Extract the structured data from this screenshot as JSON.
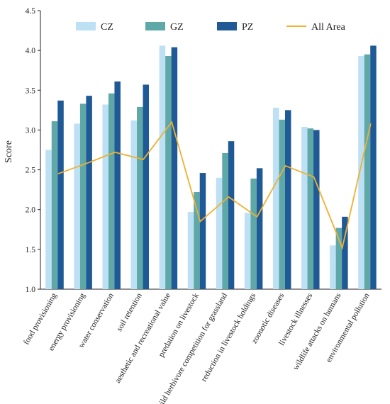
{
  "chart_data": {
    "type": "bar",
    "ylabel": "Score",
    "ylim": [
      1.0,
      4.5
    ],
    "yticks": [
      "1.0",
      "1.5",
      "2.0",
      "2.5",
      "3.0",
      "3.5",
      "4.0",
      "4.5"
    ],
    "grid": false,
    "legend_position": "top",
    "categories": [
      "food provisioning",
      "energy provisioning",
      "water conservation",
      "soil retention",
      "aesthetic and recreational value",
      "predation on livestock",
      "wild herbivore competition for grassland",
      "reduction in livestock holdings",
      "zoonotic diseases",
      "livestock illnesses",
      "wildlife attacks on humans",
      "environmental pollution"
    ],
    "series": [
      {
        "name": "CZ",
        "kind": "bar",
        "color": "#bde0f5",
        "values": [
          2.75,
          3.08,
          3.32,
          3.12,
          4.06,
          1.97,
          2.4,
          1.96,
          3.28,
          3.04,
          1.55,
          3.93
        ]
      },
      {
        "name": "GZ",
        "kind": "bar",
        "color": "#5fa8a8",
        "values": [
          3.11,
          3.33,
          3.46,
          3.29,
          3.93,
          2.22,
          2.71,
          2.39,
          3.13,
          3.02,
          1.77,
          3.95
        ]
      },
      {
        "name": "PZ",
        "kind": "bar",
        "color": "#1f5a96",
        "values": [
          3.37,
          3.43,
          3.61,
          3.57,
          4.04,
          2.46,
          2.86,
          2.52,
          3.25,
          3.0,
          1.91,
          4.06
        ]
      },
      {
        "name": "All Area",
        "kind": "line",
        "color": "#f0b030",
        "values": [
          2.45,
          2.58,
          2.72,
          2.63,
          3.1,
          1.85,
          2.16,
          1.91,
          2.55,
          2.41,
          1.52,
          3.08
        ]
      }
    ]
  }
}
